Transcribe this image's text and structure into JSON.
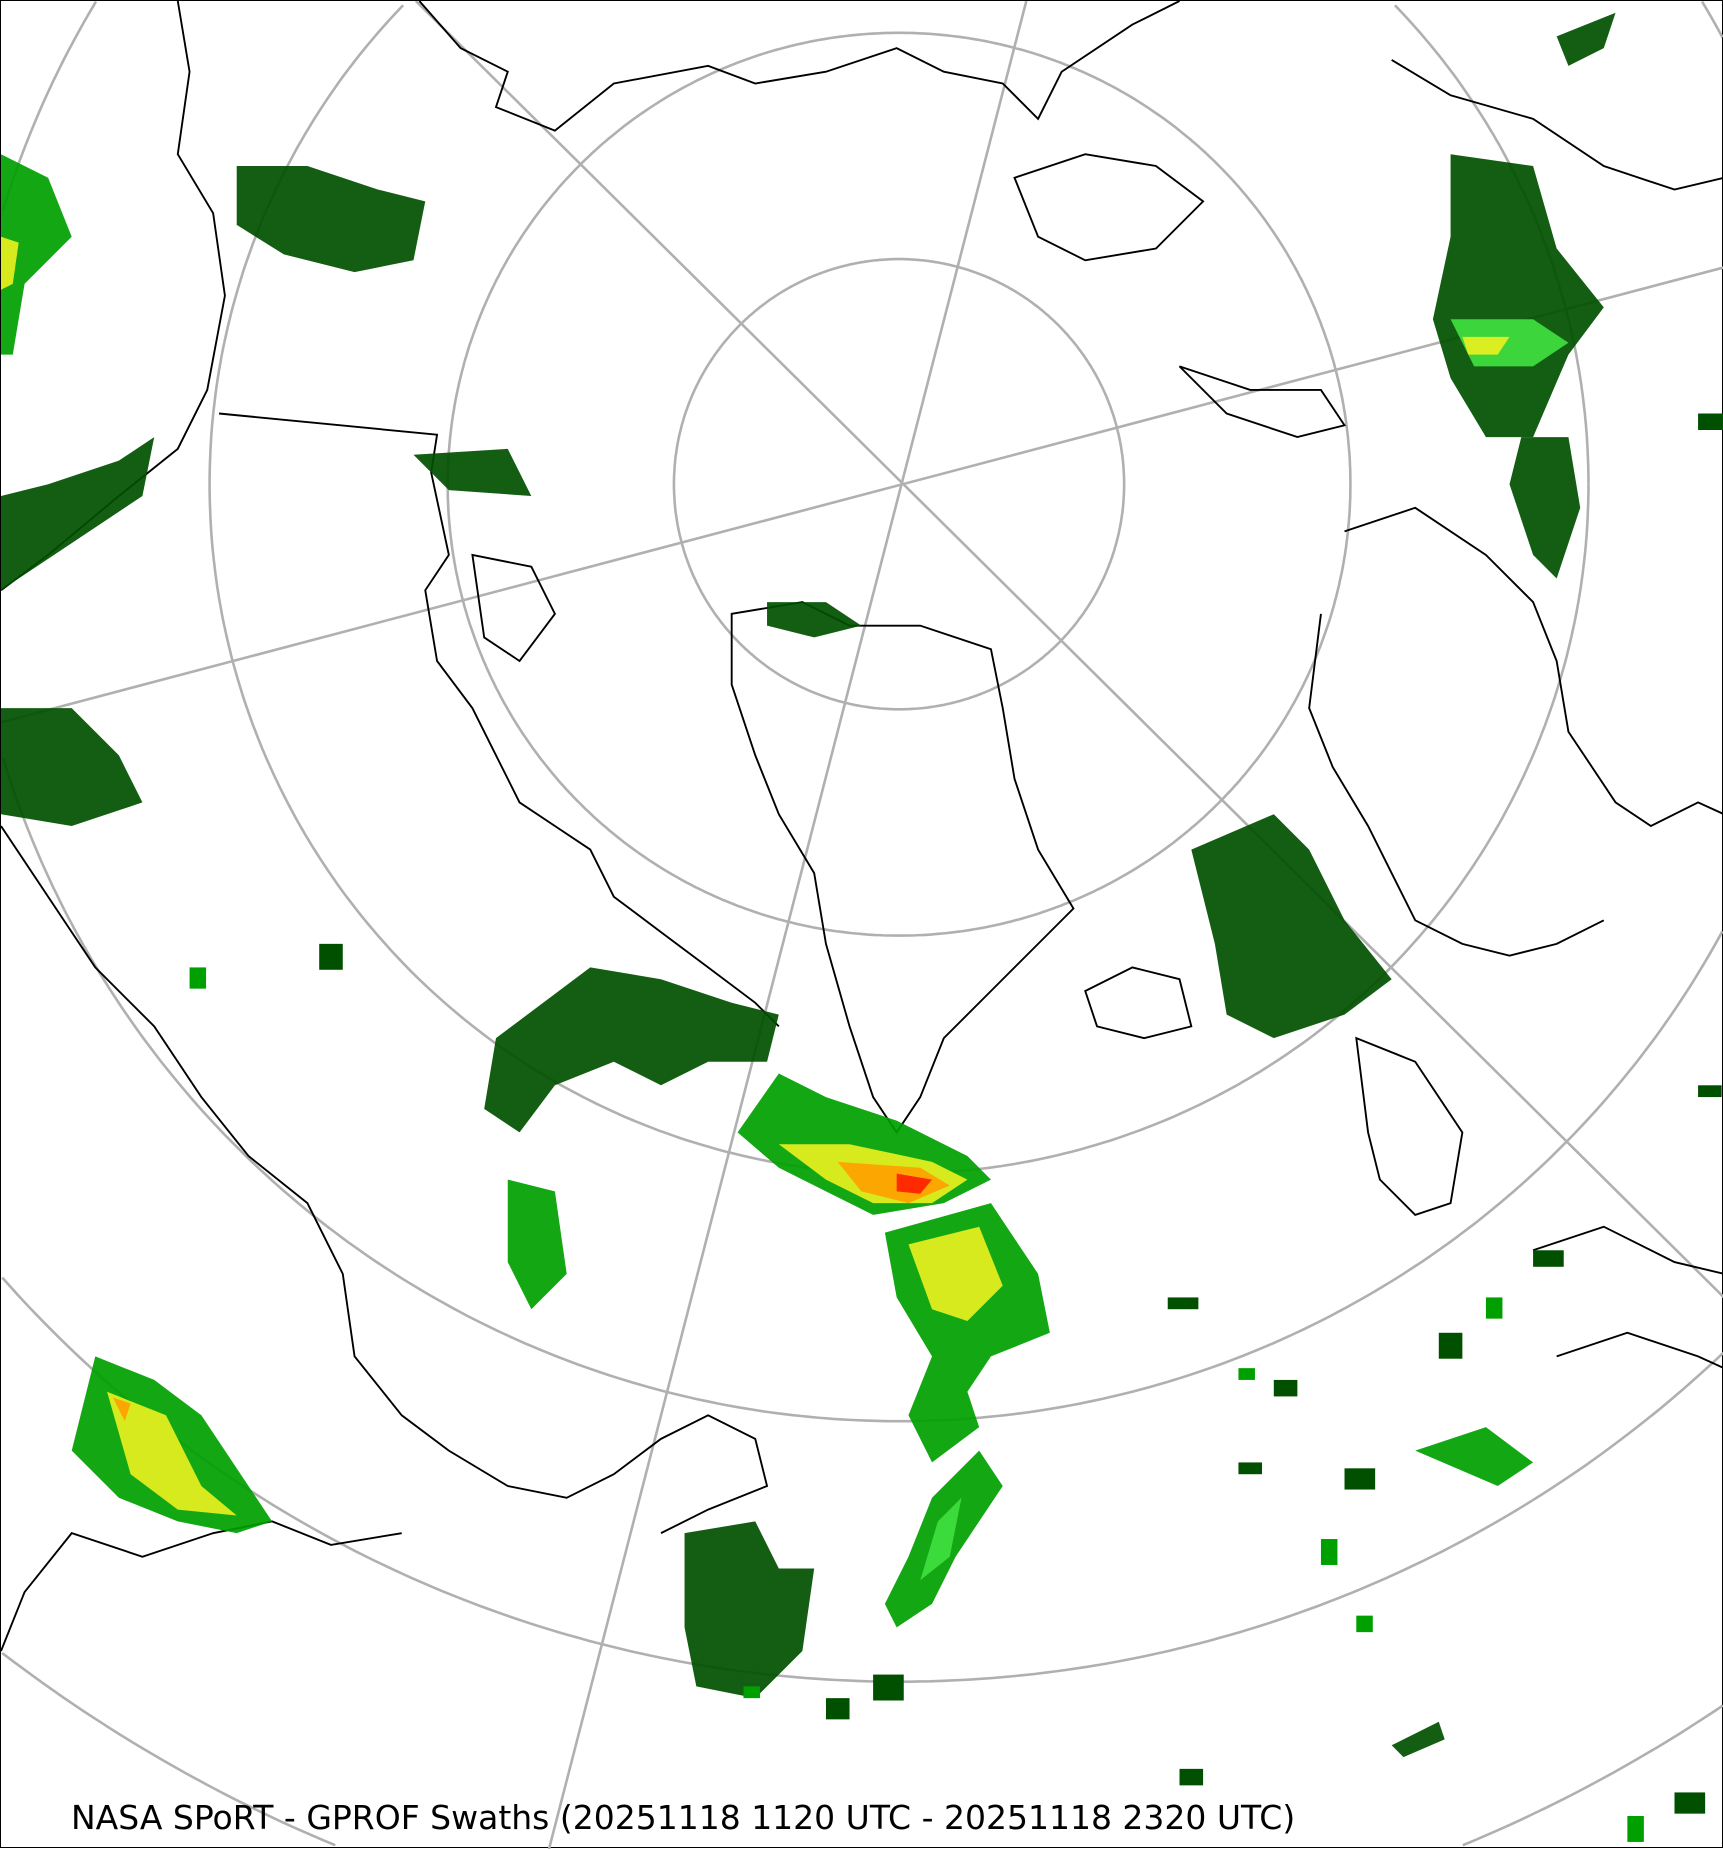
{
  "caption": "NASA SPoRT - GPROF Swaths (20251118 1120 UTC - 20251118 2320 UTC)",
  "map": {
    "projection": "north-polar-stereographic",
    "colors": {
      "gridlines": "#b0b0b0",
      "coastlines": "#000000",
      "precip_light": "#005000",
      "precip_moderate": "#00a000",
      "precip_bright": "#40e040",
      "precip_heavy": "#e8f020",
      "precip_intense": "#ffa000",
      "precip_extreme": "#ff2000"
    }
  }
}
